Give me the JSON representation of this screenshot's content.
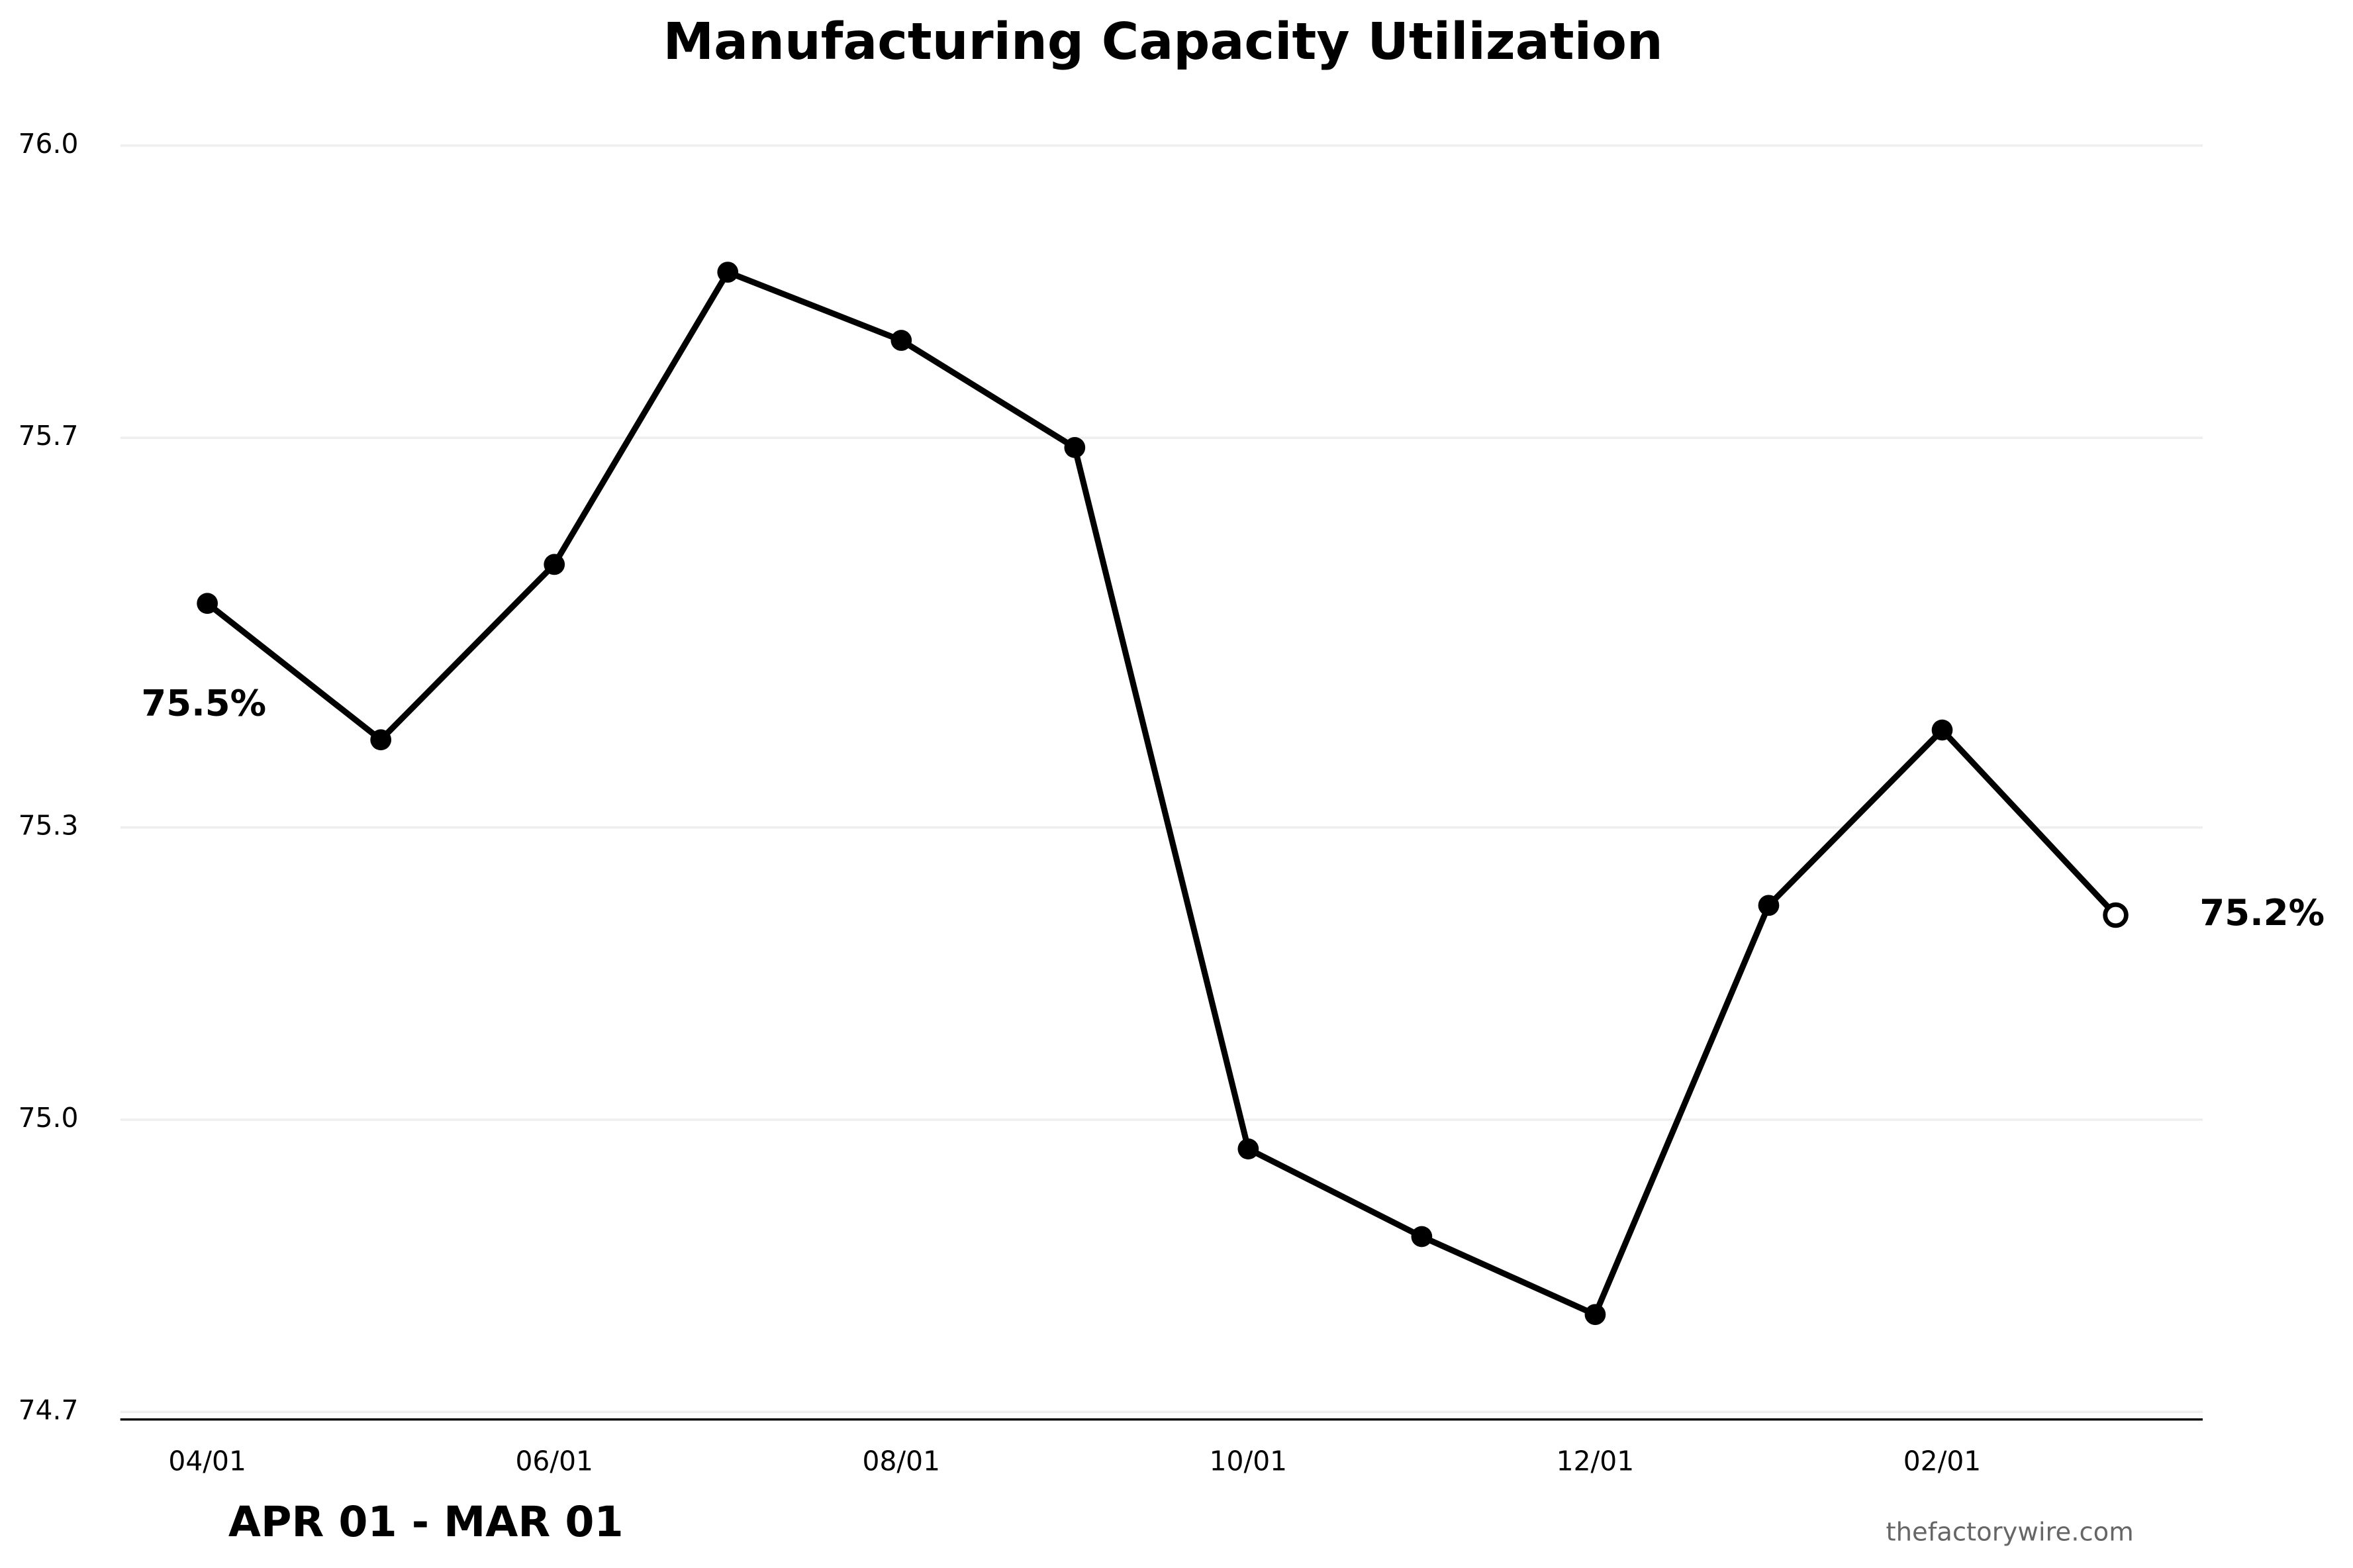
{
  "chart_data": {
    "type": "line",
    "title": "Manufacturing Capacity Utilization",
    "subtitle": "APR 01 - MAR 01",
    "source": "thefactorywire.com",
    "categories": [
      "04/01",
      null,
      "06/01",
      null,
      "08/01",
      null,
      "10/01",
      null,
      "12/01",
      null,
      "02/01",
      null
    ],
    "series": [
      {
        "name": "Capacity Utilization",
        "color": "#000000",
        "values": [
          75.53,
          75.39,
          75.57,
          75.87,
          75.8,
          75.69,
          74.97,
          74.88,
          74.8,
          75.22,
          75.4,
          75.21
        ],
        "value_labels": [
          "75.5%",
          null,
          null,
          null,
          null,
          null,
          null,
          null,
          null,
          null,
          null,
          "75.2%"
        ]
      }
    ],
    "ylim": [
      74.7,
      76.0
    ],
    "yticks": [
      74.7,
      {
        "value": 75.0,
        "label": "75.0"
      },
      75.3,
      75.7,
      {
        "value": 76.0,
        "label": "76.0"
      }
    ],
    "grid": true,
    "legend": false
  }
}
